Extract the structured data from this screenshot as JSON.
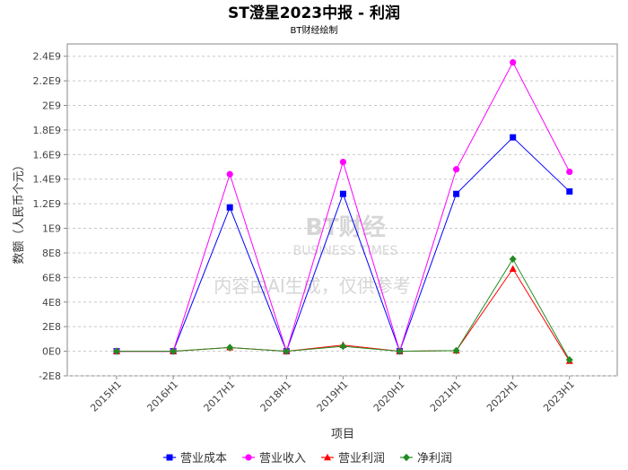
{
  "chart_data": {
    "type": "line",
    "title": "ST澄星2023中报 - 利润",
    "subtitle": "BT财经绘制",
    "xlabel": "项目",
    "ylabel": "数额（人民币个元）",
    "categories": [
      "2015H1",
      "2016H1",
      "2017H1",
      "2018H1",
      "2019H1",
      "2020H1",
      "2021H1",
      "2022H1",
      "2023H1"
    ],
    "y_ticks": [
      "-2E8",
      "0E0",
      "2E8",
      "4E8",
      "6E8",
      "8E8",
      "1E9",
      "1.2E9",
      "1.4E9",
      "1.6E9",
      "1.8E9",
      "2E9",
      "2.2E9",
      "2.4E9"
    ],
    "ylim": [
      -200000000,
      2500000000
    ],
    "grid": true,
    "legend_position": "bottom",
    "series": [
      {
        "name": "营业成本",
        "color": "#0000ff",
        "marker": "square",
        "values": [
          0,
          0,
          1170000000,
          0,
          1280000000,
          0,
          1280000000,
          1740000000,
          1300000000
        ]
      },
      {
        "name": "营业收入",
        "color": "#ff00ff",
        "marker": "circle",
        "values": [
          0,
          0,
          1440000000,
          0,
          1540000000,
          0,
          1480000000,
          2350000000,
          1460000000
        ]
      },
      {
        "name": "营业利润",
        "color": "#ff0000",
        "marker": "triangle",
        "values": [
          0,
          0,
          30000000,
          0,
          50000000,
          0,
          5000000,
          670000000,
          -80000000
        ]
      },
      {
        "name": "净利润",
        "color": "#228b22",
        "marker": "diamond",
        "values": [
          0,
          0,
          30000000,
          0,
          40000000,
          0,
          5000000,
          750000000,
          -70000000
        ]
      }
    ]
  },
  "watermark": {
    "line1": "BT财经",
    "line2": "BUSINESS TIMES",
    "line3": "内容由AI生成，仅供参考"
  }
}
